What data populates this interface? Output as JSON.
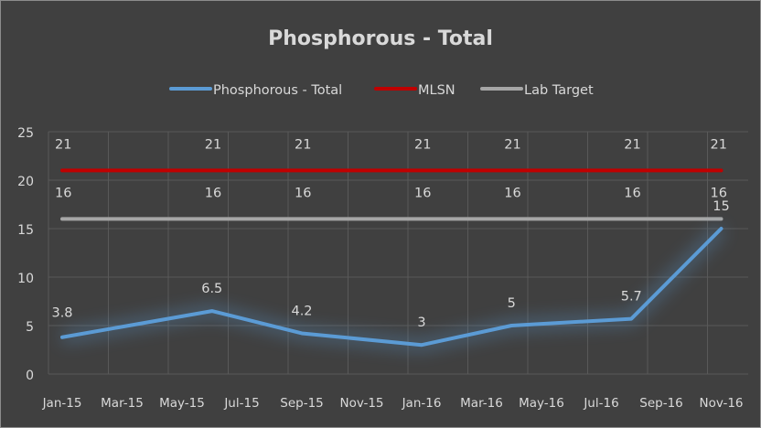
{
  "chart_data": {
    "type": "line",
    "title": "Phosphorous - Total",
    "xlabel": "",
    "ylabel": "",
    "ylim": [
      0,
      25
    ],
    "yticks": [
      0,
      5,
      10,
      15,
      20,
      25
    ],
    "xticks": [
      "Jan-15",
      "Mar-15",
      "May-15",
      "Jul-15",
      "Sep-15",
      "Nov-15",
      "Jan-16",
      "Mar-16",
      "May-16",
      "Jul-16",
      "Sep-16",
      "Nov-16"
    ],
    "grid": true,
    "legend": "top",
    "x": [
      "2015-01",
      "2015-06",
      "2015-09",
      "2016-01",
      "2016-04",
      "2016-08",
      "2016-11"
    ],
    "series": [
      {
        "name": "Phosphorous - Total",
        "color": "#5b9bd5",
        "values": [
          3.8,
          6.5,
          4.2,
          3,
          5,
          5.7,
          15
        ]
      },
      {
        "name": "MLSN",
        "color": "#c00000",
        "values": [
          21,
          21,
          21,
          21,
          21,
          21,
          21
        ]
      },
      {
        "name": "Lab Target",
        "color": "#a6a6a6",
        "values": [
          16,
          16,
          16,
          16,
          16,
          16,
          16
        ]
      }
    ],
    "colors": {
      "background": "#404040",
      "grid": "#595959",
      "text": "#d9d9d9"
    }
  }
}
